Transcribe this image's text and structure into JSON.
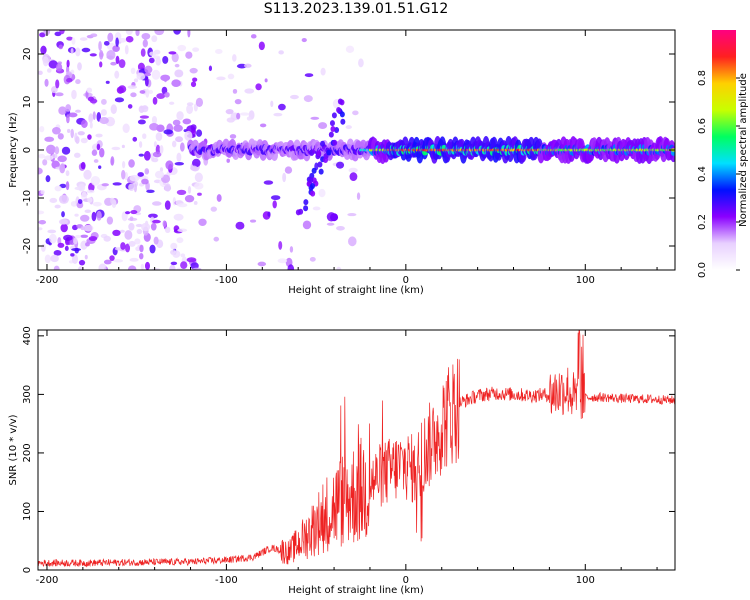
{
  "title": "S113.2023.139.01.51.G12",
  "chart_data": [
    {
      "type": "heatmap",
      "title": "S113.2023.139.01.51.G12",
      "xlabel": "Height of straight line (km)",
      "ylabel": "Frequency (Hz)",
      "xlim": [
        -205,
        150
      ],
      "ylim": [
        -25,
        25
      ],
      "xticks": [
        -200,
        -100,
        0,
        100
      ],
      "yticks": [
        -20,
        -10,
        0,
        10,
        20
      ],
      "grid": false,
      "colorbar": {
        "label": "Normalized spectral amplitude",
        "range": [
          0,
          1
        ],
        "ticks": [
          "0.0",
          "0.2",
          "0.4",
          "0.6",
          "0.8"
        ],
        "colors": [
          "#ffffff",
          "#e8d0ff",
          "#8a00ff",
          "#0010ff",
          "#00e0ff",
          "#00ff60",
          "#c8ff00",
          "#ffd000",
          "#ff2020",
          "#ff0080"
        ]
      },
      "features": [
        {
          "description": "broadband noise scatter",
          "x_range": [
            -205,
            -115
          ],
          "y_range": [
            -25,
            25
          ]
        },
        {
          "description": "signal band near 0 Hz",
          "x_range": [
            -120,
            150
          ],
          "y_range": [
            -3,
            3
          ]
        },
        {
          "description": "Doppler excursion",
          "x_range": [
            -60,
            -35
          ],
          "y_range": [
            -14,
            9
          ]
        }
      ]
    },
    {
      "type": "line",
      "xlabel": "Height of straight line (km)",
      "ylabel": "SNR (10 * v/v)",
      "xlim": [
        -205,
        150
      ],
      "ylim": [
        0,
        410
      ],
      "xticks": [
        -200,
        -100,
        0,
        100
      ],
      "yticks": [
        0,
        100,
        200,
        300,
        400
      ],
      "grid": false,
      "series_color": "#ee2222",
      "envelope": {
        "x": [
          -205,
          -180,
          -150,
          -120,
          -100,
          -85,
          -75,
          -65,
          -55,
          -45,
          -35,
          -25,
          -15,
          -5,
          0,
          5,
          10,
          15,
          20,
          25,
          30,
          40,
          50,
          60,
          70,
          80,
          90,
          95,
          100,
          110,
          120,
          135,
          150
        ],
        "y": [
          12,
          12,
          13,
          14,
          17,
          22,
          38,
          30,
          60,
          95,
          120,
          135,
          160,
          175,
          180,
          170,
          200,
          220,
          250,
          270,
          285,
          298,
          302,
          300,
          298,
          300,
          310,
          290,
          295,
          295,
          293,
          292,
          290
        ]
      }
    }
  ]
}
